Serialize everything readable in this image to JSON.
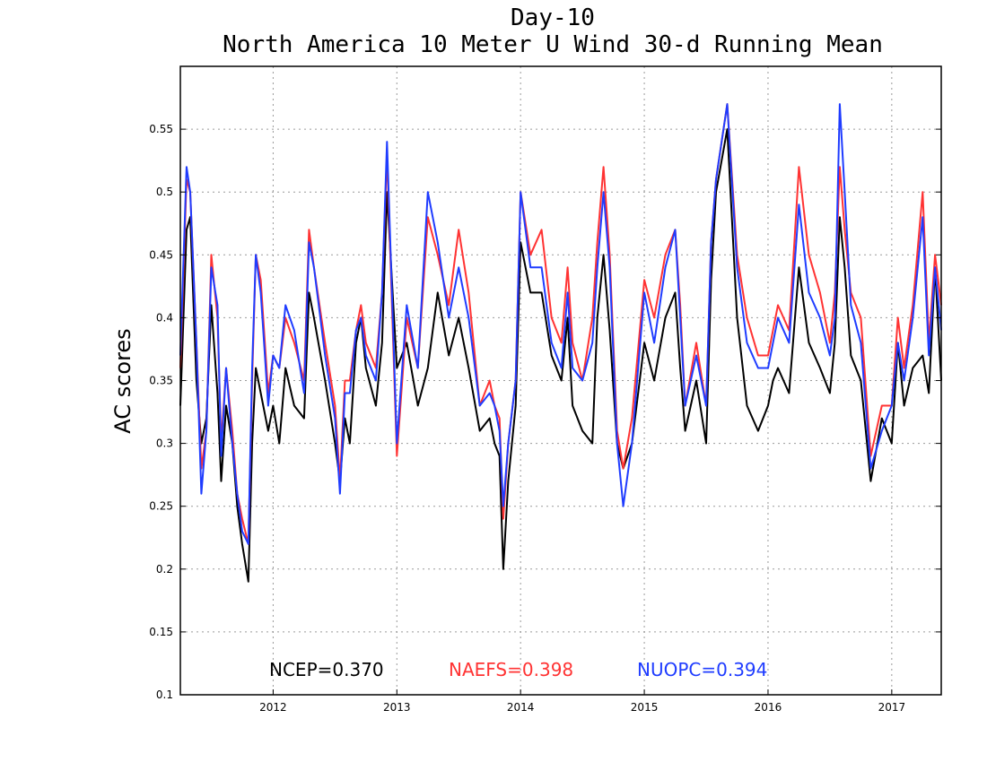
{
  "chart_data": {
    "type": "line",
    "title": "Day-10",
    "subtitle": "North America 10 Meter U Wind 30-d Running Mean",
    "xlabel": "",
    "ylabel": "AC scores",
    "xlim": [
      2011.25,
      2017.4
    ],
    "ylim": [
      0.1,
      0.6
    ],
    "yticks": [
      0.1,
      0.15,
      0.2,
      0.25,
      0.3,
      0.35,
      0.4,
      0.45,
      0.5,
      0.55
    ],
    "ytick_labels": [
      "0.1",
      "0.15",
      "0.2",
      "0.25",
      "0.3",
      "0.35",
      "0.4",
      "0.45",
      "0.5",
      "0.55"
    ],
    "xticks": [
      2012,
      2013,
      2014,
      2015,
      2016,
      2017
    ],
    "xtick_labels": [
      "2012",
      "2013",
      "2014",
      "2015",
      "2016",
      "2017"
    ],
    "grid": true,
    "series": [
      {
        "name": "NCEP",
        "color": "#000000",
        "x": [
          2011.25,
          2011.3,
          2011.33,
          2011.38,
          2011.42,
          2011.46,
          2011.5,
          2011.55,
          2011.58,
          2011.62,
          2011.67,
          2011.71,
          2011.75,
          2011.8,
          2011.83,
          2011.86,
          2011.9,
          2011.96,
          2012.0,
          2012.05,
          2012.1,
          2012.17,
          2012.25,
          2012.29,
          2012.33,
          2012.42,
          2012.5,
          2012.54,
          2012.58,
          2012.62,
          2012.67,
          2012.71,
          2012.75,
          2012.83,
          2012.88,
          2012.92,
          2013.0,
          2013.08,
          2013.17,
          2013.25,
          2013.33,
          2013.42,
          2013.5,
          2013.58,
          2013.67,
          2013.75,
          2013.79,
          2013.83,
          2013.86,
          2013.9,
          2013.96,
          2014.0,
          2014.08,
          2014.17,
          2014.25,
          2014.33,
          2014.38,
          2014.42,
          2014.5,
          2014.58,
          2014.62,
          2014.67,
          2014.72,
          2014.78,
          2014.83,
          2014.9,
          2015.0,
          2015.08,
          2015.17,
          2015.25,
          2015.29,
          2015.33,
          2015.42,
          2015.5,
          2015.54,
          2015.58,
          2015.67,
          2015.75,
          2015.83,
          2015.92,
          2016.0,
          2016.04,
          2016.08,
          2016.17,
          2016.25,
          2016.33,
          2016.42,
          2016.5,
          2016.54,
          2016.58,
          2016.62,
          2016.67,
          2016.75,
          2016.83,
          2016.92,
          2017.0,
          2017.05,
          2017.1,
          2017.17,
          2017.25,
          2017.3,
          2017.35,
          2017.4
        ],
        "y": [
          0.33,
          0.47,
          0.48,
          0.35,
          0.3,
          0.32,
          0.41,
          0.34,
          0.27,
          0.33,
          0.3,
          0.25,
          0.22,
          0.19,
          0.3,
          0.36,
          0.34,
          0.31,
          0.33,
          0.3,
          0.36,
          0.33,
          0.32,
          0.42,
          0.4,
          0.35,
          0.3,
          0.27,
          0.32,
          0.3,
          0.38,
          0.4,
          0.36,
          0.33,
          0.38,
          0.5,
          0.36,
          0.38,
          0.33,
          0.36,
          0.42,
          0.37,
          0.4,
          0.36,
          0.31,
          0.32,
          0.3,
          0.29,
          0.2,
          0.27,
          0.33,
          0.46,
          0.42,
          0.42,
          0.37,
          0.35,
          0.4,
          0.33,
          0.31,
          0.3,
          0.4,
          0.45,
          0.39,
          0.3,
          0.28,
          0.3,
          0.38,
          0.35,
          0.4,
          0.42,
          0.36,
          0.31,
          0.35,
          0.3,
          0.43,
          0.5,
          0.55,
          0.4,
          0.33,
          0.31,
          0.33,
          0.35,
          0.36,
          0.34,
          0.44,
          0.38,
          0.36,
          0.34,
          0.38,
          0.48,
          0.44,
          0.37,
          0.35,
          0.27,
          0.32,
          0.3,
          0.38,
          0.33,
          0.36,
          0.37,
          0.34,
          0.44,
          0.35
        ]
      },
      {
        "name": "NAEFS",
        "color": "#ff3333",
        "x": [
          2011.25,
          2011.3,
          2011.33,
          2011.38,
          2011.42,
          2011.46,
          2011.5,
          2011.55,
          2011.58,
          2011.62,
          2011.67,
          2011.71,
          2011.75,
          2011.8,
          2011.83,
          2011.86,
          2011.9,
          2011.96,
          2012.0,
          2012.05,
          2012.1,
          2012.17,
          2012.25,
          2012.29,
          2012.33,
          2012.42,
          2012.5,
          2012.54,
          2012.58,
          2012.62,
          2012.67,
          2012.71,
          2012.75,
          2012.83,
          2012.88,
          2012.92,
          2013.0,
          2013.08,
          2013.17,
          2013.25,
          2013.33,
          2013.42,
          2013.5,
          2013.58,
          2013.67,
          2013.75,
          2013.79,
          2013.83,
          2013.86,
          2013.9,
          2013.96,
          2014.0,
          2014.08,
          2014.17,
          2014.25,
          2014.33,
          2014.38,
          2014.42,
          2014.5,
          2014.58,
          2014.62,
          2014.67,
          2014.72,
          2014.78,
          2014.83,
          2014.9,
          2015.0,
          2015.08,
          2015.17,
          2015.25,
          2015.29,
          2015.33,
          2015.42,
          2015.5,
          2015.54,
          2015.58,
          2015.67,
          2015.75,
          2015.83,
          2015.92,
          2016.0,
          2016.04,
          2016.08,
          2016.17,
          2016.25,
          2016.33,
          2016.42,
          2016.5,
          2016.54,
          2016.58,
          2016.62,
          2016.67,
          2016.75,
          2016.83,
          2016.92,
          2017.0,
          2017.05,
          2017.1,
          2017.17,
          2017.25,
          2017.3,
          2017.35,
          2017.4
        ],
        "y": [
          0.36,
          0.51,
          0.5,
          0.38,
          0.28,
          0.31,
          0.45,
          0.4,
          0.3,
          0.36,
          0.31,
          0.26,
          0.24,
          0.22,
          0.35,
          0.45,
          0.43,
          0.34,
          0.37,
          0.36,
          0.4,
          0.38,
          0.35,
          0.47,
          0.44,
          0.38,
          0.33,
          0.27,
          0.35,
          0.35,
          0.39,
          0.41,
          0.38,
          0.36,
          0.42,
          0.53,
          0.29,
          0.4,
          0.36,
          0.48,
          0.45,
          0.41,
          0.47,
          0.42,
          0.33,
          0.35,
          0.33,
          0.32,
          0.24,
          0.3,
          0.35,
          0.5,
          0.45,
          0.47,
          0.4,
          0.38,
          0.44,
          0.38,
          0.35,
          0.4,
          0.46,
          0.52,
          0.45,
          0.31,
          0.28,
          0.32,
          0.43,
          0.4,
          0.45,
          0.47,
          0.41,
          0.33,
          0.38,
          0.33,
          0.46,
          0.51,
          0.57,
          0.45,
          0.4,
          0.37,
          0.37,
          0.39,
          0.41,
          0.39,
          0.52,
          0.45,
          0.42,
          0.38,
          0.42,
          0.52,
          0.47,
          0.42,
          0.4,
          0.29,
          0.33,
          0.33,
          0.4,
          0.36,
          0.41,
          0.5,
          0.38,
          0.45,
          0.41
        ]
      },
      {
        "name": "NUOPC",
        "color": "#1f3cff",
        "x": [
          2011.25,
          2011.3,
          2011.33,
          2011.38,
          2011.42,
          2011.46,
          2011.5,
          2011.55,
          2011.58,
          2011.62,
          2011.67,
          2011.71,
          2011.75,
          2011.8,
          2011.83,
          2011.86,
          2011.9,
          2011.96,
          2012.0,
          2012.05,
          2012.1,
          2012.17,
          2012.25,
          2012.29,
          2012.33,
          2012.42,
          2012.5,
          2012.54,
          2012.58,
          2012.62,
          2012.67,
          2012.71,
          2012.75,
          2012.83,
          2012.88,
          2012.92,
          2013.0,
          2013.08,
          2013.17,
          2013.25,
          2013.33,
          2013.42,
          2013.5,
          2013.58,
          2013.67,
          2013.75,
          2013.79,
          2013.83,
          2013.86,
          2013.9,
          2013.96,
          2014.0,
          2014.08,
          2014.17,
          2014.25,
          2014.33,
          2014.38,
          2014.42,
          2014.5,
          2014.58,
          2014.62,
          2014.67,
          2014.72,
          2014.78,
          2014.83,
          2014.9,
          2015.0,
          2015.08,
          2015.17,
          2015.25,
          2015.29,
          2015.33,
          2015.42,
          2015.5,
          2015.54,
          2015.58,
          2015.67,
          2015.75,
          2015.83,
          2015.92,
          2016.0,
          2016.04,
          2016.08,
          2016.17,
          2016.25,
          2016.33,
          2016.42,
          2016.5,
          2016.54,
          2016.58,
          2016.62,
          2016.67,
          2016.75,
          2016.83,
          2016.92,
          2017.0,
          2017.05,
          2017.1,
          2017.17,
          2017.25,
          2017.3,
          2017.35,
          2017.4
        ],
        "y": [
          0.37,
          0.52,
          0.5,
          0.38,
          0.26,
          0.31,
          0.44,
          0.41,
          0.29,
          0.36,
          0.3,
          0.26,
          0.23,
          0.22,
          0.36,
          0.45,
          0.42,
          0.33,
          0.37,
          0.36,
          0.41,
          0.39,
          0.34,
          0.46,
          0.44,
          0.37,
          0.32,
          0.26,
          0.34,
          0.34,
          0.39,
          0.4,
          0.37,
          0.35,
          0.42,
          0.54,
          0.3,
          0.41,
          0.36,
          0.5,
          0.46,
          0.4,
          0.44,
          0.4,
          0.33,
          0.34,
          0.33,
          0.31,
          0.25,
          0.3,
          0.35,
          0.5,
          0.44,
          0.44,
          0.38,
          0.36,
          0.42,
          0.36,
          0.35,
          0.38,
          0.44,
          0.5,
          0.44,
          0.3,
          0.25,
          0.3,
          0.42,
          0.38,
          0.44,
          0.47,
          0.4,
          0.33,
          0.37,
          0.33,
          0.46,
          0.51,
          0.57,
          0.44,
          0.38,
          0.36,
          0.36,
          0.38,
          0.4,
          0.38,
          0.49,
          0.42,
          0.4,
          0.37,
          0.4,
          0.57,
          0.5,
          0.41,
          0.38,
          0.28,
          0.31,
          0.33,
          0.38,
          0.35,
          0.4,
          0.48,
          0.37,
          0.44,
          0.39
        ]
      }
    ],
    "annotations": [
      {
        "label": "NCEP=0.370",
        "color": "#000000"
      },
      {
        "label": "NAEFS=0.398",
        "color": "#ff3333"
      },
      {
        "label": "NUOPC=0.394",
        "color": "#1f3cff"
      }
    ]
  }
}
